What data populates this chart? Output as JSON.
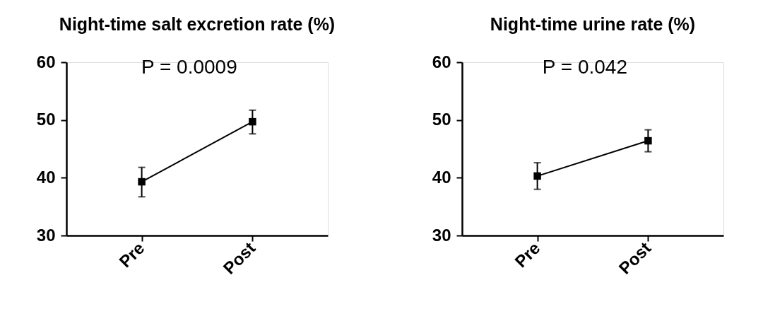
{
  "chart_data": [
    {
      "type": "line",
      "title": "Night-time salt excretion rate (%)",
      "categories": [
        "Pre",
        "Post"
      ],
      "series": [
        {
          "color": "#000000",
          "values": [
            39.3,
            49.7
          ],
          "errors": [
            [
              36.7,
              41.8
            ],
            [
              47.6,
              51.7
            ]
          ]
        }
      ],
      "ylim": [
        30,
        60
      ],
      "yticks": [
        30,
        40,
        50,
        60
      ],
      "marker": "square",
      "line_style": "solid",
      "grid": false,
      "annotations": [
        "P = 0.0009"
      ]
    },
    {
      "type": "line",
      "title": "Night-time urine rate (%)",
      "categories": [
        "Pre",
        "Post"
      ],
      "series": [
        {
          "color": "#000000",
          "values": [
            40.3,
            46.4
          ],
          "errors": [
            [
              38.0,
              42.6
            ],
            [
              44.5,
              48.3
            ]
          ]
        }
      ],
      "ylim": [
        30,
        60
      ],
      "yticks": [
        30,
        40,
        50,
        60
      ],
      "marker": "square",
      "line_style": "solid",
      "grid": false,
      "annotations": [
        "P = 0.042"
      ]
    }
  ]
}
